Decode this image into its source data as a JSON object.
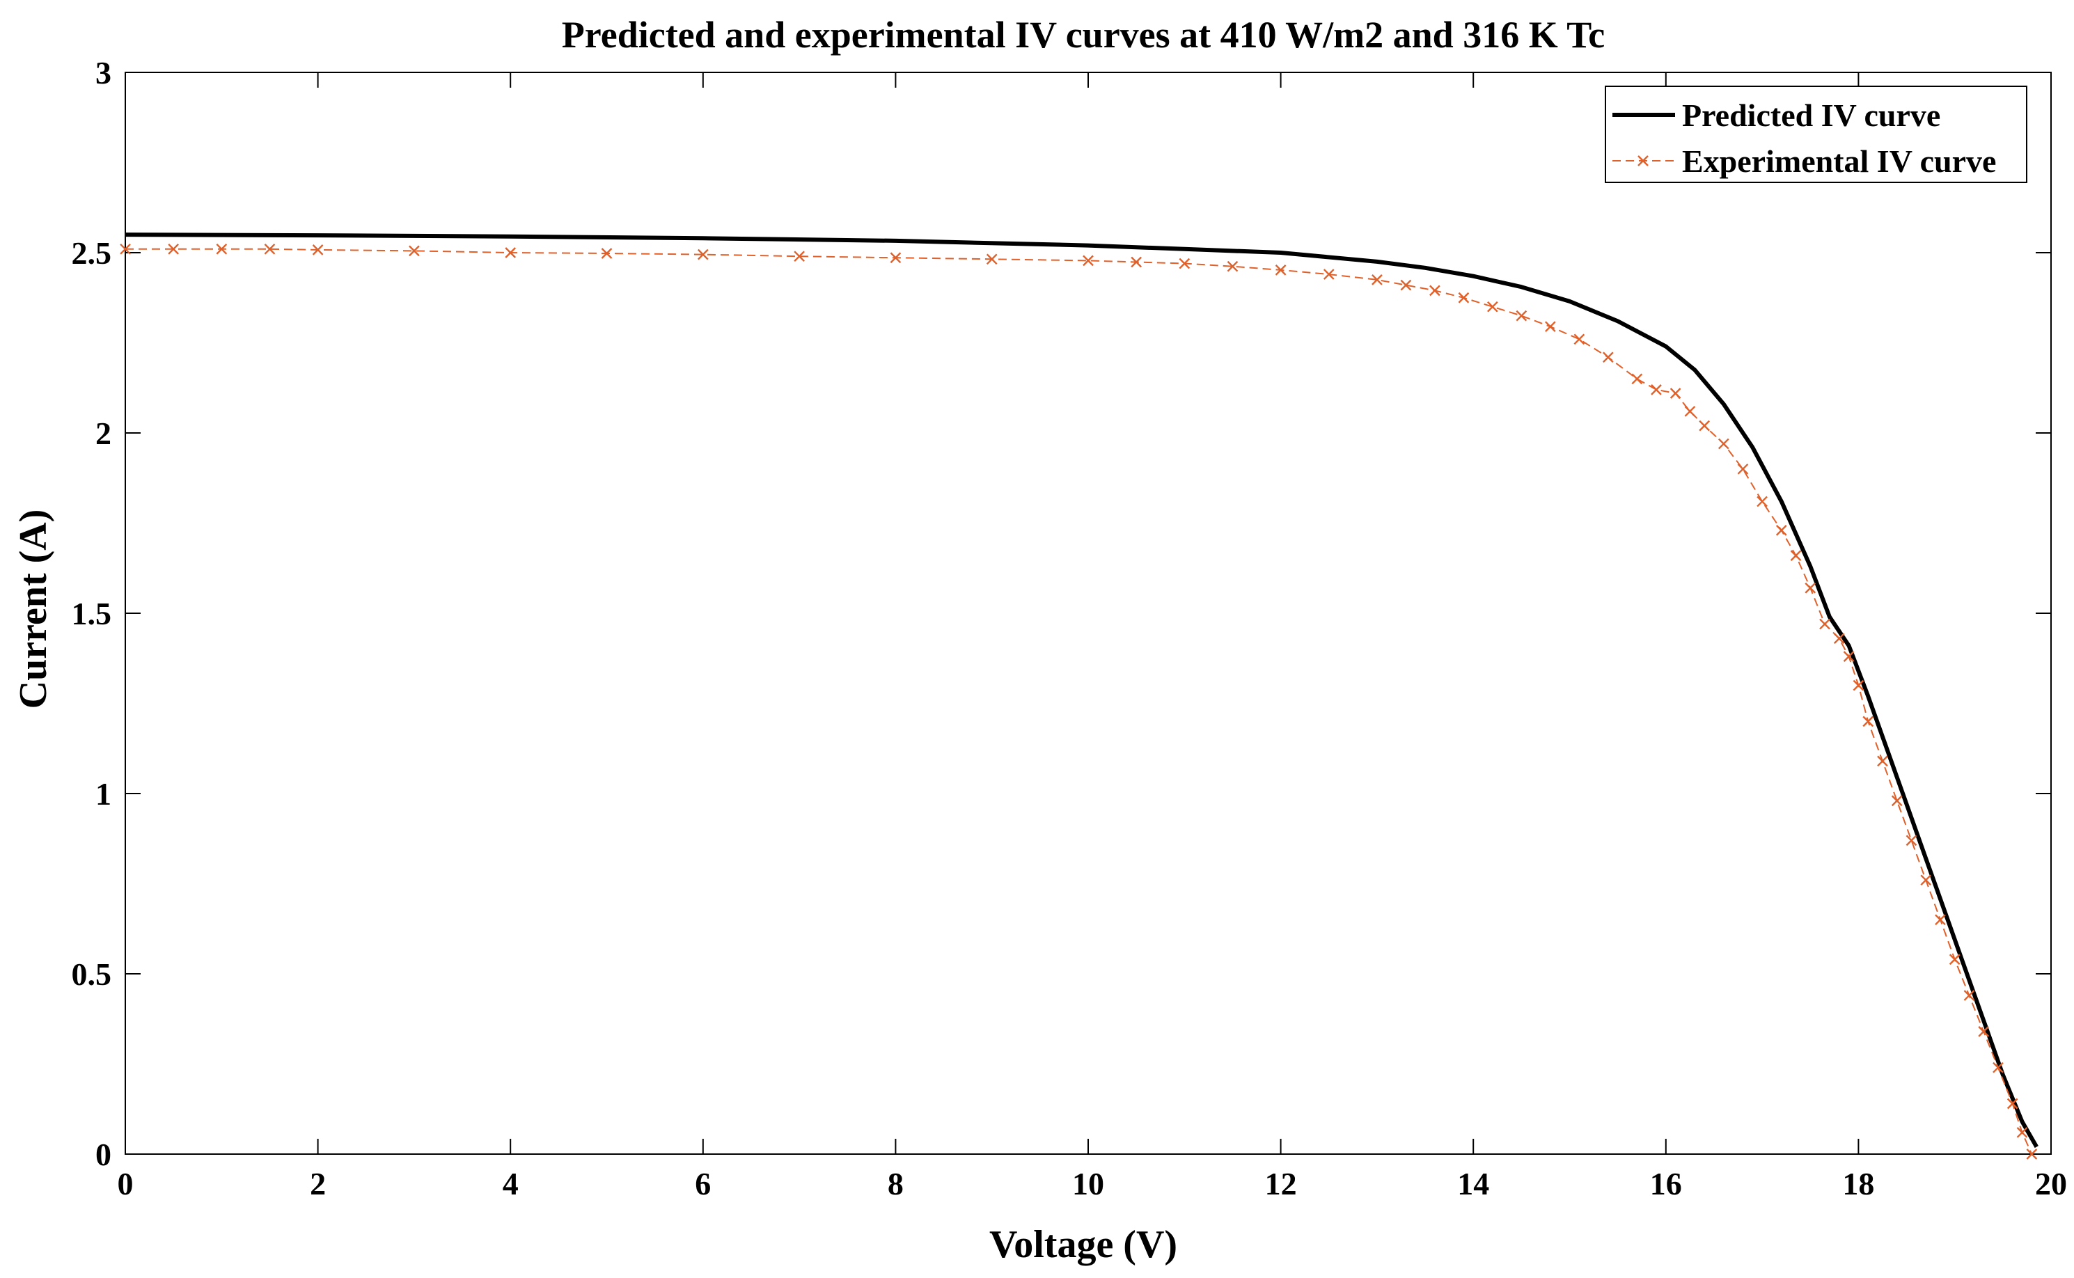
{
  "chart_data": {
    "type": "line",
    "title": "Predicted and experimental IV curves at 410 W/m2 and 316 K Tc",
    "xlabel": "Voltage (V)",
    "ylabel": "Current (A)",
    "xlim": [
      0,
      20
    ],
    "ylim": [
      0,
      3
    ],
    "xticks": [
      0,
      2,
      4,
      6,
      8,
      10,
      12,
      14,
      16,
      18,
      20
    ],
    "yticks": [
      0,
      0.5,
      1,
      1.5,
      2,
      2.5,
      3
    ],
    "xtick_labels": [
      "0",
      "2",
      "4",
      "6",
      "8",
      "10",
      "12",
      "14",
      "16",
      "18",
      "20"
    ],
    "ytick_labels": [
      "0",
      "0.5",
      "1",
      "1.5",
      "2",
      "2.5",
      "3"
    ],
    "grid": false,
    "legend_position": "top-right",
    "series": [
      {
        "name": "Predicted IV curve",
        "color": "#000000",
        "style": "solid",
        "marker": "none",
        "x": [
          0,
          2,
          4,
          6,
          8,
          10,
          11,
          12,
          13,
          13.5,
          14,
          14.5,
          15,
          15.5,
          16,
          16.3,
          16.6,
          16.9,
          17.2,
          17.5,
          17.7,
          17.9,
          18.1,
          18.3,
          18.5,
          18.7,
          18.9,
          19.1,
          19.3,
          19.5,
          19.7,
          19.85
        ],
        "y": [
          2.55,
          2.548,
          2.545,
          2.54,
          2.533,
          2.52,
          2.51,
          2.5,
          2.475,
          2.458,
          2.435,
          2.405,
          2.365,
          2.31,
          2.24,
          2.175,
          2.08,
          1.96,
          1.81,
          1.63,
          1.49,
          1.41,
          1.27,
          1.12,
          0.97,
          0.82,
          0.67,
          0.52,
          0.37,
          0.22,
          0.09,
          0.02
        ]
      },
      {
        "name": "Experimental IV curve",
        "color": "#e0602a",
        "style": "dashed",
        "marker": "x",
        "x": [
          0,
          0.5,
          1,
          1.5,
          2,
          3,
          4,
          5,
          6,
          7,
          8,
          9,
          10,
          10.5,
          11,
          11.5,
          12,
          12.5,
          13,
          13.3,
          13.6,
          13.9,
          14.2,
          14.5,
          14.8,
          15.1,
          15.4,
          15.7,
          15.9,
          16.1,
          16.25,
          16.4,
          16.6,
          16.8,
          17.0,
          17.2,
          17.35,
          17.5,
          17.65,
          17.8,
          17.9,
          18.0,
          18.1,
          18.25,
          18.4,
          18.55,
          18.7,
          18.85,
          19.0,
          19.15,
          19.3,
          19.45,
          19.6,
          19.7,
          19.8
        ],
        "y": [
          2.51,
          2.51,
          2.51,
          2.51,
          2.508,
          2.505,
          2.5,
          2.498,
          2.495,
          2.49,
          2.486,
          2.482,
          2.478,
          2.474,
          2.47,
          2.462,
          2.452,
          2.44,
          2.425,
          2.41,
          2.395,
          2.375,
          2.35,
          2.325,
          2.295,
          2.26,
          2.21,
          2.15,
          2.12,
          2.11,
          2.06,
          2.02,
          1.97,
          1.9,
          1.81,
          1.73,
          1.66,
          1.57,
          1.47,
          1.43,
          1.38,
          1.3,
          1.2,
          1.09,
          0.98,
          0.87,
          0.76,
          0.65,
          0.54,
          0.44,
          0.34,
          0.24,
          0.14,
          0.06,
          0.0
        ]
      }
    ]
  }
}
